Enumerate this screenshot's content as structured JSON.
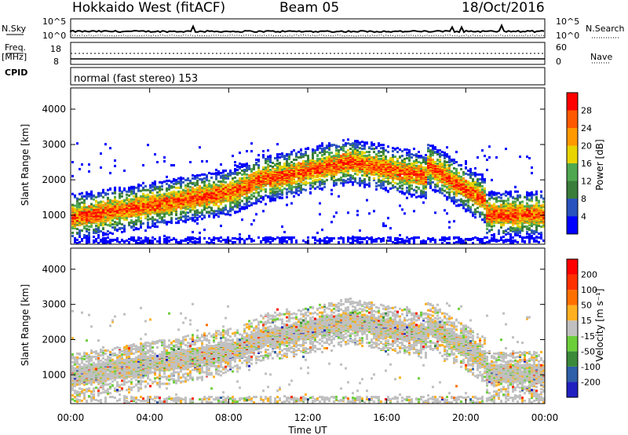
{
  "header": {
    "station": "Hokkaido West (fitACF)",
    "beam": "Beam 05",
    "date": "18/Oct/2016"
  },
  "panels": {
    "nsky_label": "N.Sky",
    "nsearch_label": "N.Search",
    "nsky_ticks": [
      "10^5",
      "10^0"
    ],
    "nsearch_ticks": [
      "10^5",
      "10^0"
    ],
    "freq_label_1": "Freq.",
    "freq_label_2": "[MHz]",
    "freq_ticks": [
      "18",
      "8"
    ],
    "nave_label": "Nave",
    "nave_ticks": [
      "60",
      "0"
    ],
    "cpid_label": "CPID",
    "cpid_text": "normal (fast stereo) 153"
  },
  "chart_data": [
    {
      "type": "heatmap",
      "title": "",
      "xlabel": "Time UT",
      "ylabel": "Slant Range [km]",
      "x_ticks": [
        "00:00",
        "04:00",
        "08:00",
        "12:00",
        "16:00",
        "20:00",
        "00:00"
      ],
      "y_ticks": [
        1000,
        2000,
        3000,
        4000
      ],
      "ylim": [
        180,
        4600
      ],
      "colorbar_label": "Power [dB]",
      "colorbar_ticks": [
        "28",
        "24",
        "20",
        "16",
        "12",
        "8",
        "4"
      ],
      "colors": [
        "#0000ff",
        "#2a52be",
        "#3a7d3a",
        "#4fa84f",
        "#e8d400",
        "#ff9900",
        "#ff5a00",
        "#ff0000"
      ]
    },
    {
      "type": "heatmap",
      "title": "",
      "xlabel": "Time UT",
      "ylabel": "Slant Range [km]",
      "x_ticks": [
        "00:00",
        "04:00",
        "08:00",
        "12:00",
        "16:00",
        "20:00",
        "00:00"
      ],
      "y_ticks": [
        1000,
        2000,
        3000,
        4000
      ],
      "ylim": [
        180,
        4600
      ],
      "colorbar_label": "Velocity [m s⁻¹]",
      "colorbar_ticks": [
        "200",
        "100",
        "50",
        "15",
        "-15",
        "-50",
        "-100",
        "-200"
      ],
      "colors": [
        "#2020c0",
        "#2e5fa8",
        "#3a8a3a",
        "#6ccf3a",
        "#c0c0c0",
        "#ffb020",
        "#ff7000",
        "#ff3000",
        "#ff0000"
      ]
    }
  ],
  "x_axis_title": "Time UT"
}
